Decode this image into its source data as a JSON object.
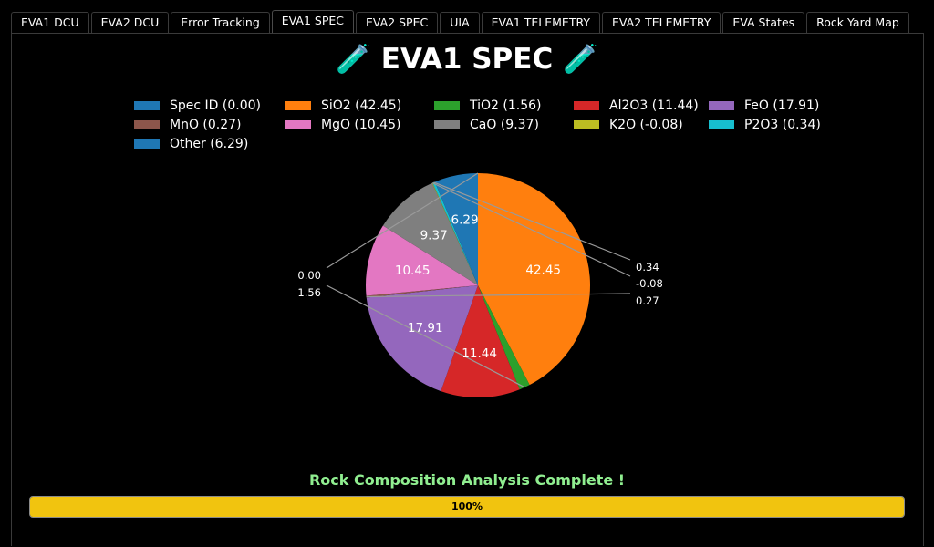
{
  "tabs": [
    {
      "label": "EVA1 DCU",
      "active": false
    },
    {
      "label": "EVA2 DCU",
      "active": false
    },
    {
      "label": "Error Tracking",
      "active": false
    },
    {
      "label": "EVA1 SPEC",
      "active": true
    },
    {
      "label": "EVA2 SPEC",
      "active": false
    },
    {
      "label": "UIA",
      "active": false
    },
    {
      "label": "EVA1 TELEMETRY",
      "active": false
    },
    {
      "label": "EVA2 TELEMETRY",
      "active": false
    },
    {
      "label": "EVA States",
      "active": false
    },
    {
      "label": "Rock Yard Map",
      "active": false
    }
  ],
  "header": {
    "title": "🧪 EVA1 SPEC 🧪"
  },
  "chart_data": {
    "type": "pie",
    "slices": [
      {
        "label": "Spec ID",
        "legend": "Spec ID (0.00)",
        "value": 0.0,
        "display": "0.00",
        "color": "#1f77b4"
      },
      {
        "label": "SiO2",
        "legend": "SiO2 (42.45)",
        "value": 42.45,
        "display": "42.45",
        "color": "#ff7f0e"
      },
      {
        "label": "TiO2",
        "legend": "TiO2 (1.56)",
        "value": 1.56,
        "display": "1.56",
        "color": "#2ca02c"
      },
      {
        "label": "Al2O3",
        "legend": "Al2O3 (11.44)",
        "value": 11.44,
        "display": "11.44",
        "color": "#d62728"
      },
      {
        "label": "FeO",
        "legend": "FeO (17.91)",
        "value": 17.91,
        "display": "17.91",
        "color": "#9467bd"
      },
      {
        "label": "MnO",
        "legend": "MnO (0.27)",
        "value": 0.27,
        "display": "0.27",
        "color": "#8c564b"
      },
      {
        "label": "MgO",
        "legend": "MgO (10.45)",
        "value": 10.45,
        "display": "10.45",
        "color": "#e377c2"
      },
      {
        "label": "CaO",
        "legend": "CaO (9.37)",
        "value": 9.37,
        "display": "9.37",
        "color": "#7f7f7f"
      },
      {
        "label": "K2O",
        "legend": "K2O (-0.08)",
        "value": -0.08,
        "display": "-0.08",
        "color": "#bcbd22"
      },
      {
        "label": "P2O3",
        "legend": "P2O3 (0.34)",
        "value": 0.34,
        "display": "0.34",
        "color": "#17becf"
      },
      {
        "label": "Other",
        "legend": "Other (6.29)",
        "value": 6.29,
        "display": "6.29",
        "color": "#1f77b4"
      }
    ],
    "legend_placement": "top-center"
  },
  "status": {
    "message": "Rock Composition Analysis Complete !",
    "progress": 100,
    "progress_label": "100%",
    "message_color": "#90ee90",
    "bar_color": "#f1c40f"
  }
}
